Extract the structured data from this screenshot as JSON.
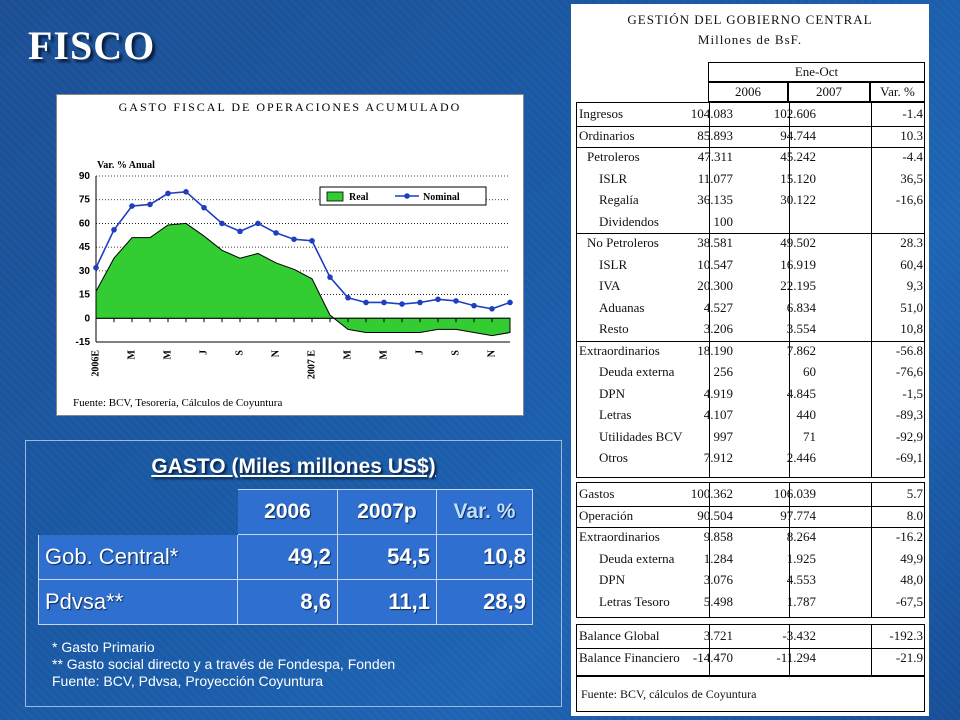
{
  "title": "FISCO",
  "chart_data": {
    "type": "area",
    "title": "GASTO FISCAL DE OPERACIONES ACUMULADO",
    "ylabel": "Var. % Anual",
    "ylim": [
      -15,
      90
    ],
    "yticks": [
      "90",
      "75",
      "60",
      "45",
      "30",
      "15",
      "0",
      "-15"
    ],
    "xlabels": [
      "2006E",
      "M",
      "M",
      "J",
      "S",
      "N",
      "2007 E",
      "M",
      "M",
      "J",
      "S",
      "N"
    ],
    "x": [
      "E06",
      "F06",
      "M06",
      "A06",
      "M06",
      "J06",
      "J06",
      "A06",
      "S06",
      "O06",
      "N06",
      "D06",
      "E07",
      "F07",
      "M07",
      "A07",
      "M07",
      "J07",
      "J07",
      "A07",
      "S07",
      "O07",
      "N07",
      "D07"
    ],
    "series": [
      {
        "name": "Real",
        "type": "area",
        "color": "#33cc33",
        "values": [
          17,
          38,
          51,
          51,
          59,
          60,
          52,
          43,
          38,
          41,
          35,
          31,
          25,
          2,
          -7,
          -9,
          -9,
          -9,
          -9,
          -7,
          -7,
          -9,
          -11,
          -9
        ]
      },
      {
        "name": "Nominal",
        "type": "line",
        "color": "#1f3fbf",
        "values": [
          32,
          56,
          71,
          72,
          79,
          80,
          70,
          60,
          55,
          60,
          54,
          50,
          49,
          26,
          13,
          10,
          10,
          9,
          10,
          12,
          11,
          8,
          6,
          10
        ]
      }
    ],
    "source": "Fuente: BCV, Tesorería, Cálculos de Coyuntura"
  },
  "gasto": {
    "title": "GASTO (Miles millones US$)",
    "headers": [
      "2006",
      "2007p",
      "Var. %"
    ],
    "rows": [
      {
        "label": "Gob. Central*",
        "v2006": "49,2",
        "v2007": "54,5",
        "var": "10,8"
      },
      {
        "label": "Pdvsa**",
        "v2006": "8,6",
        "v2007": "11,1",
        "var": "28,9"
      }
    ],
    "notes": [
      "* Gasto Primario",
      "** Gasto social directo y a través de Fondespa, Fonden",
      "Fuente: BCV, Pdvsa, Proyección Coyuntura"
    ]
  },
  "fiscal": {
    "title1": "GESTIÓN DEL GOBIERNO CENTRAL",
    "title2": "Millones de BsF.",
    "period": "Ene-Oct",
    "cols": [
      "2006",
      "2007",
      "Var. %"
    ],
    "ingresos": [
      {
        "label": "Ingresos",
        "a": "104.083",
        "b": "102.606",
        "c": "-1.4"
      },
      {
        "label": "Ordinarios",
        "a": "85.893",
        "b": "94.744",
        "c": "10.3"
      },
      {
        "label": "Petroleros",
        "a": "47.311",
        "b": "45.242",
        "c": "-4.4"
      },
      {
        "label": "ISLR",
        "a": "11.077",
        "b": "15.120",
        "c": "36,5"
      },
      {
        "label": "Regalía",
        "a": "36.135",
        "b": "30.122",
        "c": "-16,6"
      },
      {
        "label": "Dividendos",
        "a": "100",
        "b": "",
        "c": ""
      },
      {
        "label": "No Petroleros",
        "a": "38.581",
        "b": "49.502",
        "c": "28.3"
      },
      {
        "label": "ISLR",
        "a": "10.547",
        "b": "16.919",
        "c": "60,4"
      },
      {
        "label": "IVA",
        "a": "20.300",
        "b": "22.195",
        "c": "9,3"
      },
      {
        "label": "Aduanas",
        "a": "4.527",
        "b": "6.834",
        "c": "51,0"
      },
      {
        "label": "Resto",
        "a": "3.206",
        "b": "3.554",
        "c": "10,8"
      },
      {
        "label": "Extraordinarios",
        "a": "18.190",
        "b": "7.862",
        "c": "-56.8"
      },
      {
        "label": "Deuda externa",
        "a": "256",
        "b": "60",
        "c": "-76,6"
      },
      {
        "label": "DPN",
        "a": "4.919",
        "b": "4.845",
        "c": "-1,5"
      },
      {
        "label": "Letras",
        "a": "4.107",
        "b": "440",
        "c": "-89,3"
      },
      {
        "label": "Utilidades BCV",
        "a": "997",
        "b": "71",
        "c": "-92,9"
      },
      {
        "label": "Otros",
        "a": "7.912",
        "b": "2.446",
        "c": "-69,1"
      }
    ],
    "gastos": [
      {
        "label": "Gastos",
        "a": "100.362",
        "b": "106.039",
        "c": "5.7"
      },
      {
        "label": "Operación",
        "a": "90.504",
        "b": "97.774",
        "c": "8.0"
      },
      {
        "label": "Extraordinarios",
        "a": "9.858",
        "b": "8.264",
        "c": "-16.2"
      },
      {
        "label": "Deuda externa",
        "a": "1.284",
        "b": "1.925",
        "c": "49,9"
      },
      {
        "label": "DPN",
        "a": "3.076",
        "b": "4.553",
        "c": "48,0"
      },
      {
        "label": "Letras Tesoro",
        "a": "5.498",
        "b": "1.787",
        "c": "-67,5"
      }
    ],
    "balance": [
      {
        "label": "Balance Global",
        "a": "3.721",
        "b": "-3.432",
        "c": "-192.3"
      },
      {
        "label": "Balance Financiero",
        "a": "-14.470",
        "b": "-11.294",
        "c": "-21.9"
      }
    ],
    "source": "Fuente: BCV, cálculos de Coyuntura"
  }
}
